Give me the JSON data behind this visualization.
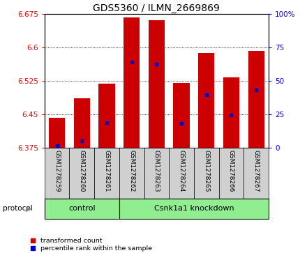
{
  "title": "GDS5360 / ILMN_2669869",
  "samples": [
    "GSM1278259",
    "GSM1278260",
    "GSM1278261",
    "GSM1278262",
    "GSM1278263",
    "GSM1278264",
    "GSM1278265",
    "GSM1278266",
    "GSM1278267"
  ],
  "bar_values": [
    6.443,
    6.486,
    6.519,
    6.667,
    6.661,
    6.52,
    6.587,
    6.533,
    6.592
  ],
  "blue_marker_values": [
    6.381,
    6.391,
    6.431,
    6.567,
    6.562,
    6.43,
    6.494,
    6.449,
    6.505
  ],
  "ymin": 6.375,
  "ymax": 6.675,
  "yticks": [
    6.375,
    6.45,
    6.525,
    6.6,
    6.675
  ],
  "ytick_labels": [
    "6.375",
    "6.45",
    "6.525",
    "6.6",
    "6.675"
  ],
  "y2min": 0,
  "y2max": 100,
  "y2ticks": [
    0,
    25,
    50,
    75,
    100
  ],
  "y2tick_labels": [
    "0",
    "25",
    "50",
    "75",
    "100%"
  ],
  "bar_color": "#cc0000",
  "blue_color": "#0000cc",
  "n_control": 3,
  "n_knockdown": 6,
  "control_label": "control",
  "knockdown_label": "Csnk1a1 knockdown",
  "protocol_label": "protocol",
  "legend_red": "transformed count",
  "legend_blue": "percentile rank within the sample",
  "bar_width": 0.65,
  "tick_area_color": "#d0d0d0",
  "protocol_green": "#90ee90",
  "title_fontsize": 10,
  "tick_fontsize": 7.5,
  "sample_fontsize": 6.5
}
